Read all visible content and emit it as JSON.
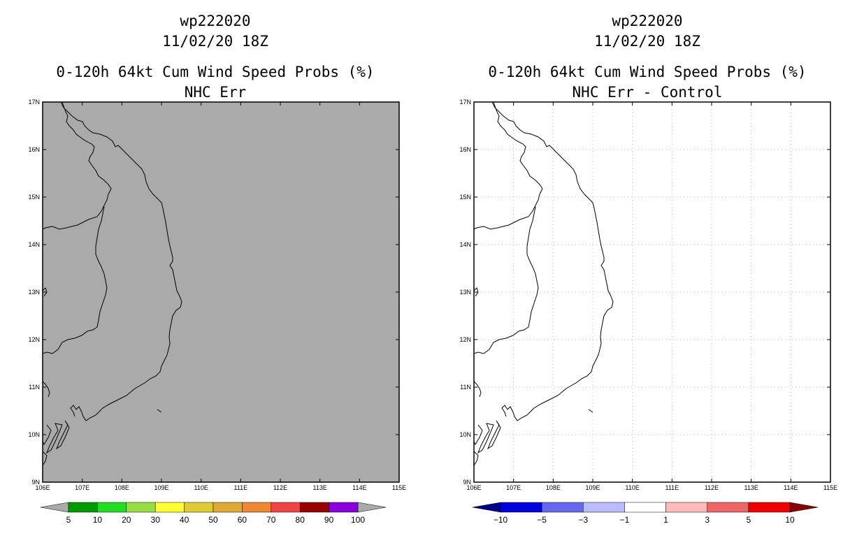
{
  "panels": [
    {
      "storm_id": "wp222020",
      "date": "11/02/20 18Z",
      "product": "0-120h 64kt Cum Wind Speed Probs (%)",
      "subtitle": "NHC Err",
      "map_fill": "#aaaaaa",
      "show_grid": false,
      "colorbar": {
        "colors": [
          "#009900",
          "#22dd22",
          "#99dd44",
          "#ffff33",
          "#ddcc33",
          "#ddaa33",
          "#ee8833",
          "#ee4444",
          "#990000",
          "#8800dd"
        ],
        "end_left": "#aaaaaa",
        "end_right": "#aaaaaa",
        "labels": [
          "5",
          "10",
          "20",
          "30",
          "40",
          "50",
          "60",
          "70",
          "80",
          "90",
          "100"
        ]
      }
    },
    {
      "storm_id": "wp222020",
      "date": "11/02/20 18Z",
      "product": "0-120h 64kt Cum Wind Speed Probs (%)",
      "subtitle": "NHC Err - Control",
      "map_fill": "#ffffff",
      "show_grid": true,
      "colorbar": {
        "colors": [
          "#0000dd",
          "#6666ee",
          "#bbbbff",
          "#ffffff",
          "#ffbbbb",
          "#ee6666",
          "#ee0000"
        ],
        "end_left": "#000088",
        "end_right": "#880000",
        "labels": [
          "-10",
          "-5",
          "-3",
          "-1",
          "1",
          "3",
          "5",
          "10"
        ]
      }
    }
  ],
  "axes": {
    "lon": [
      "106E",
      "107E",
      "108E",
      "109E",
      "110E",
      "111E",
      "112E",
      "113E",
      "114E",
      "115E"
    ],
    "lat": [
      "17N",
      "16N",
      "15N",
      "14N",
      "13N",
      "12N",
      "11N",
      "10N",
      "9N"
    ]
  }
}
